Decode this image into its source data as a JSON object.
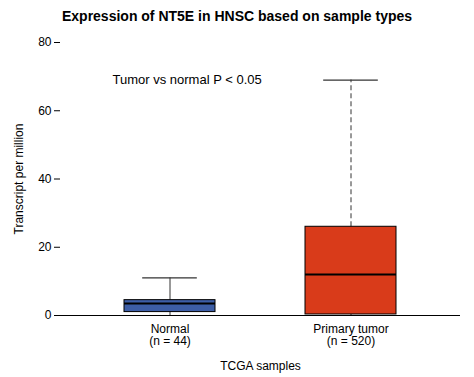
{
  "chart_data": {
    "type": "box",
    "title": "Expression of NT5E in HNSC based on sample types",
    "xlabel": "TCGA samples",
    "ylabel": "Transcript per million",
    "annotations": [
      {
        "text": "Tumor vs normal P < 0.05"
      }
    ],
    "categories": [
      "Normal\n(n = 44)",
      "Primary tumor\n(n = 520)"
    ],
    "boxes": [
      {
        "whisker_low": 0.0,
        "q1": 1.0,
        "median": 3.5,
        "q3": 4.5,
        "whisker_high": 11.0,
        "color": "#3d5ea6",
        "line_style": "solid"
      },
      {
        "whisker_low": 0.0,
        "q1": 0.3,
        "median": 12.0,
        "q3": 26.0,
        "whisker_high": 69.0,
        "color": "#d93b1a",
        "line_style": "dashed"
      }
    ],
    "ylim": [
      0,
      80
    ],
    "yticks": [
      0,
      20,
      40,
      60,
      80
    ],
    "grid": false
  }
}
